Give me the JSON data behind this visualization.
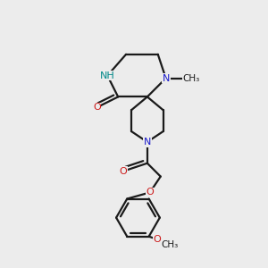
{
  "bg": "#ececec",
  "bond_color": "#1a1a1a",
  "N_color": "#1a1acc",
  "NH_color": "#008888",
  "O_color": "#cc1a1a",
  "lw": 1.6,
  "figsize": [
    3.0,
    3.0
  ],
  "dpi": 100,
  "xlim": [
    0,
    10
  ],
  "ylim": [
    0,
    10
  ]
}
